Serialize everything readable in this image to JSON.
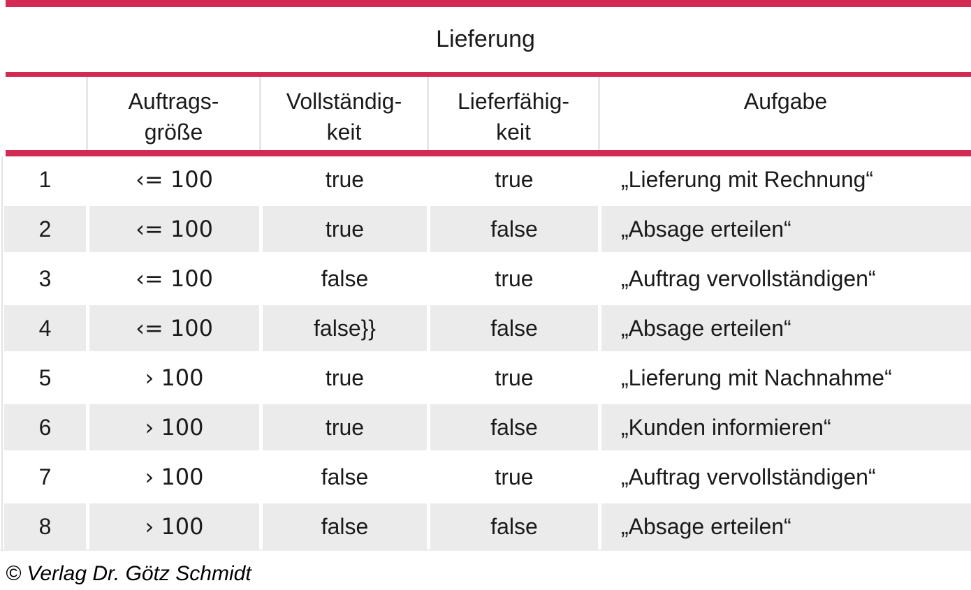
{
  "colors": {
    "accent_red": "#d22a52",
    "row_gray": "#ebebeb",
    "text": "#1a1a1a"
  },
  "title": "Lieferung",
  "table": {
    "headers": {
      "nr": "",
      "auftragsgroesse": "Auftrags-\ngröße",
      "vollstaendigkeit": "Vollständig-\nkeit",
      "lieferfaehigkeit": "Lieferfähig-\nkeit",
      "aufgabe": "Aufgabe"
    },
    "rows": [
      {
        "nr": "1",
        "auftragsgroesse": "‹= 100",
        "vollstaendigkeit": "true",
        "lieferfaehigkeit": "true",
        "aufgabe": "„Lieferung mit Rechnung“"
      },
      {
        "nr": "2",
        "auftragsgroesse": "‹= 100",
        "vollstaendigkeit": "true",
        "lieferfaehigkeit": "false",
        "aufgabe": "„Absage erteilen“"
      },
      {
        "nr": "3",
        "auftragsgroesse": "‹= 100",
        "vollstaendigkeit": "false",
        "lieferfaehigkeit": "true",
        "aufgabe": "„Auftrag vervollständigen“"
      },
      {
        "nr": "4",
        "auftragsgroesse": "‹= 100",
        "vollstaendigkeit": "false}}",
        "lieferfaehigkeit": "false",
        "aufgabe": "„Absage erteilen“"
      },
      {
        "nr": "5",
        "auftragsgroesse": "› 100",
        "vollstaendigkeit": "true",
        "lieferfaehigkeit": "true",
        "aufgabe": "„Lieferung mit Nachnahme“"
      },
      {
        "nr": "6",
        "auftragsgroesse": "› 100",
        "vollstaendigkeit": "true",
        "lieferfaehigkeit": "false",
        "aufgabe": "„Kunden informieren“"
      },
      {
        "nr": "7",
        "auftragsgroesse": "› 100",
        "vollstaendigkeit": "false",
        "lieferfaehigkeit": "true",
        "aufgabe": "„Auftrag vervollständigen“"
      },
      {
        "nr": "8",
        "auftragsgroesse": "› 100",
        "vollstaendigkeit": "false",
        "lieferfaehigkeit": "false",
        "aufgabe": "„Absage erteilen“"
      }
    ]
  },
  "footer": {
    "copyright": "© Verlag Dr. Götz Schmidt"
  }
}
